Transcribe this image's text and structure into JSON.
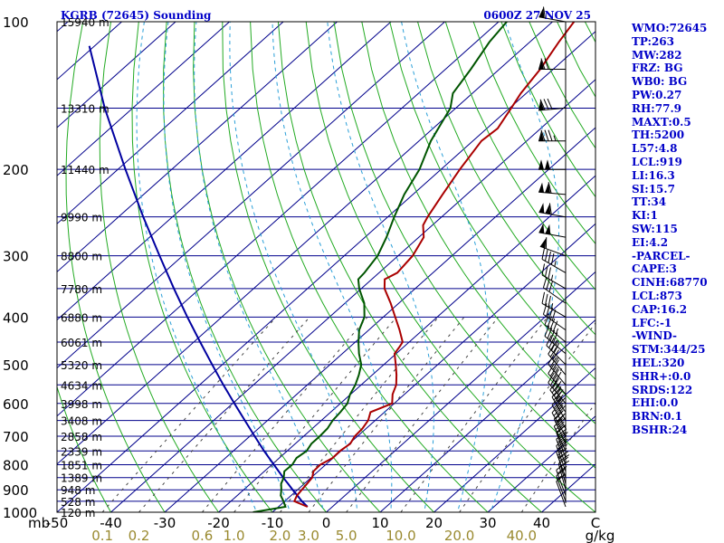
{
  "header": {
    "station": "KGRB (72645) Sounding",
    "time": "0600Z 27 NOV 25"
  },
  "indices": [
    "WMO:72645",
    "TP:263",
    "MW:282",
    "FRZ: BG",
    "WB0: BG",
    "PW:0.27",
    "RH:77.9",
    "MAXT:0.5",
    "TH:5200",
    "L57:4.8",
    "LCL:919",
    "LI:16.3",
    "SI:15.7",
    "TT:34",
    "KI:1",
    "SW:115",
    "EI:4.2",
    "-PARCEL-",
    "CAPE:3",
    "CINH:68770",
    "LCL:873",
    "CAP:16.2",
    "LFC:-1",
    "-WIND-",
    "STM:344/25",
    "HEL:320",
    "SHR+:0.0",
    "SRDS:122",
    "EHI:0.0",
    "BRN:0.1",
    "BSHR:24"
  ],
  "chart_data": {
    "type": "line",
    "subtype": "skew-t log-p sounding",
    "y_scale": "log",
    "pressure_range_mb": [
      1000,
      100
    ],
    "temp_range_c": [
      -50,
      50
    ],
    "pressure_unit_label": "mb",
    "pressure_labels": [
      {
        "p": 100,
        "text": "100"
      },
      {
        "p": 200,
        "text": "200"
      },
      {
        "p": 300,
        "text": "300"
      },
      {
        "p": 400,
        "text": "400"
      },
      {
        "p": 500,
        "text": "500"
      },
      {
        "p": 600,
        "text": "600"
      },
      {
        "p": 700,
        "text": "700"
      },
      {
        "p": 800,
        "text": "800"
      },
      {
        "p": 900,
        "text": "900"
      },
      {
        "p": 1000,
        "text": "1000"
      }
    ],
    "height_levels": [
      {
        "p": 100,
        "text": "15940 m"
      },
      {
        "p": 150,
        "text": "13310 m"
      },
      {
        "p": 200,
        "text": "11440 m"
      },
      {
        "p": 250,
        "text": "9990 m"
      },
      {
        "p": 300,
        "text": "8800 m"
      },
      {
        "p": 350,
        "text": "7780 m"
      },
      {
        "p": 400,
        "text": "6880 m"
      },
      {
        "p": 450,
        "text": "6061 m"
      },
      {
        "p": 500,
        "text": "5320 m"
      },
      {
        "p": 550,
        "text": "4634 m"
      },
      {
        "p": 600,
        "text": "3998 m"
      },
      {
        "p": 650,
        "text": "3408 m"
      },
      {
        "p": 700,
        "text": "2858 m"
      },
      {
        "p": 750,
        "text": "2339 m"
      },
      {
        "p": 800,
        "text": "1851 m"
      },
      {
        "p": 850,
        "text": "1389 m"
      },
      {
        "p": 900,
        "text": "948 m"
      },
      {
        "p": 950,
        "text": "528 m"
      },
      {
        "p": 1000,
        "text": "120 m"
      }
    ],
    "temperature_ticks": [
      "-50",
      "-40",
      "-30",
      "-20",
      "-10",
      "0",
      "10",
      "20",
      "30",
      "40",
      "C"
    ],
    "mixing_ratio_labels": [
      "0.1",
      "0.2",
      "0.6",
      "1.0",
      "2.0",
      "3.0",
      "5.0",
      "10.0",
      "20.0",
      "40.0"
    ],
    "mixing_ratio_unit": "g/kg",
    "temperature_profile": [
      {
        "p": 975,
        "t": -4.6
      },
      {
        "p": 950,
        "t": -8.2
      },
      {
        "p": 925,
        "t": -8.9
      },
      {
        "p": 900,
        "t": -9.2
      },
      {
        "p": 875,
        "t": -9.5
      },
      {
        "p": 850,
        "t": -9.8
      },
      {
        "p": 825,
        "t": -10.9
      },
      {
        "p": 800,
        "t": -11.0
      },
      {
        "p": 775,
        "t": -10.1
      },
      {
        "p": 750,
        "t": -10.2
      },
      {
        "p": 725,
        "t": -9.8
      },
      {
        "p": 700,
        "t": -10.5
      },
      {
        "p": 675,
        "t": -10.7
      },
      {
        "p": 650,
        "t": -11.3
      },
      {
        "p": 625,
        "t": -12.6
      },
      {
        "p": 600,
        "t": -10.4
      },
      {
        "p": 575,
        "t": -12.2
      },
      {
        "p": 550,
        "t": -13.5
      },
      {
        "p": 525,
        "t": -15.5
      },
      {
        "p": 500,
        "t": -17.8
      },
      {
        "p": 475,
        "t": -20.3
      },
      {
        "p": 460,
        "t": -20.8
      },
      {
        "p": 450,
        "t": -21.2
      },
      {
        "p": 425,
        "t": -24.3
      },
      {
        "p": 400,
        "t": -27.8
      },
      {
        "p": 375,
        "t": -31.5
      },
      {
        "p": 350,
        "t": -35.7
      },
      {
        "p": 335,
        "t": -37.6
      },
      {
        "p": 325,
        "t": -36.6
      },
      {
        "p": 300,
        "t": -37.3
      },
      {
        "p": 275,
        "t": -39.1
      },
      {
        "p": 260,
        "t": -41.7
      },
      {
        "p": 250,
        "t": -42.6
      },
      {
        "p": 225,
        "t": -44.5
      },
      {
        "p": 200,
        "t": -46.5
      },
      {
        "p": 175,
        "t": -48.4
      },
      {
        "p": 165,
        "t": -48.0
      },
      {
        "p": 150,
        "t": -49.7
      },
      {
        "p": 140,
        "t": -51.0
      },
      {
        "p": 125,
        "t": -52.4
      },
      {
        "p": 110,
        "t": -54.6
      },
      {
        "p": 100,
        "t": -56.0
      }
    ],
    "dewpoint_profile": [
      {
        "p": 1000,
        "t": -13.6
      },
      {
        "p": 975,
        "t": -8.7
      },
      {
        "p": 950,
        "t": -10.2
      },
      {
        "p": 925,
        "t": -11.9
      },
      {
        "p": 900,
        "t": -13.0
      },
      {
        "p": 875,
        "t": -14.3
      },
      {
        "p": 850,
        "t": -15.1
      },
      {
        "p": 825,
        "t": -16.3
      },
      {
        "p": 800,
        "t": -16.2
      },
      {
        "p": 775,
        "t": -16.8
      },
      {
        "p": 750,
        "t": -16.4
      },
      {
        "p": 725,
        "t": -17.0
      },
      {
        "p": 700,
        "t": -17.0
      },
      {
        "p": 675,
        "t": -17.2
      },
      {
        "p": 650,
        "t": -17.9
      },
      {
        "p": 625,
        "t": -18.2
      },
      {
        "p": 600,
        "t": -18.7
      },
      {
        "p": 575,
        "t": -20.1
      },
      {
        "p": 550,
        "t": -21.1
      },
      {
        "p": 525,
        "t": -22.5
      },
      {
        "p": 500,
        "t": -24.2
      },
      {
        "p": 475,
        "t": -26.9
      },
      {
        "p": 450,
        "t": -29.4
      },
      {
        "p": 425,
        "t": -31.8
      },
      {
        "p": 400,
        "t": -33.5
      },
      {
        "p": 375,
        "t": -36.4
      },
      {
        "p": 350,
        "t": -40.4
      },
      {
        "p": 335,
        "t": -42.5
      },
      {
        "p": 325,
        "t": -42.7
      },
      {
        "p": 300,
        "t": -43.8
      },
      {
        "p": 275,
        "t": -46.0
      },
      {
        "p": 250,
        "t": -48.8
      },
      {
        "p": 225,
        "t": -51.6
      },
      {
        "p": 200,
        "t": -54.0
      },
      {
        "p": 175,
        "t": -57.8
      },
      {
        "p": 150,
        "t": -61.0
      },
      {
        "p": 140,
        "t": -63.6
      },
      {
        "p": 125,
        "t": -65.3
      },
      {
        "p": 110,
        "t": -67.5
      },
      {
        "p": 100,
        "t": -68.5
      }
    ],
    "parcel_profile": [
      {
        "p": 975,
        "t": -4.6
      },
      {
        "p": 950,
        "t": -6.8
      },
      {
        "p": 925,
        "t": -8.8
      },
      {
        "p": 900,
        "t": -10.9
      },
      {
        "p": 875,
        "t": -13.0
      },
      {
        "p": 850,
        "t": -15.2
      },
      {
        "p": 800,
        "t": -19.6
      },
      {
        "p": 750,
        "t": -24.3
      },
      {
        "p": 700,
        "t": -29.1
      },
      {
        "p": 650,
        "t": -34.2
      },
      {
        "p": 600,
        "t": -39.7
      },
      {
        "p": 550,
        "t": -45.6
      },
      {
        "p": 500,
        "t": -51.9
      },
      {
        "p": 450,
        "t": -58.8
      },
      {
        "p": 400,
        "t": -66.4
      },
      {
        "p": 350,
        "t": -74.8
      },
      {
        "p": 300,
        "t": -84.3
      },
      {
        "p": 250,
        "t": -95.4
      },
      {
        "p": 200,
        "t": -108.6
      },
      {
        "p": 150,
        "t": -125.2
      },
      {
        "p": 112,
        "t": -141.0
      }
    ],
    "wind_profile": [
      {
        "p": 100,
        "dir": 280,
        "kt": 60
      },
      {
        "p": 125,
        "dir": 270,
        "kt": 70
      },
      {
        "p": 150,
        "dir": 265,
        "kt": 80
      },
      {
        "p": 175,
        "dir": 270,
        "kt": 85
      },
      {
        "p": 200,
        "dir": 270,
        "kt": 100
      },
      {
        "p": 225,
        "dir": 275,
        "kt": 110
      },
      {
        "p": 250,
        "dir": 280,
        "kt": 110
      },
      {
        "p": 275,
        "dir": 280,
        "kt": 100
      },
      {
        "p": 300,
        "dir": 290,
        "kt": 60
      },
      {
        "p": 325,
        "dir": 300,
        "kt": 45
      },
      {
        "p": 350,
        "dir": 300,
        "kt": 35
      },
      {
        "p": 375,
        "dir": 305,
        "kt": 30
      },
      {
        "p": 400,
        "dir": 300,
        "kt": 35
      },
      {
        "p": 425,
        "dir": 305,
        "kt": 40
      },
      {
        "p": 450,
        "dir": 310,
        "kt": 45
      },
      {
        "p": 475,
        "dir": 310,
        "kt": 45
      },
      {
        "p": 500,
        "dir": 315,
        "kt": 40
      },
      {
        "p": 525,
        "dir": 320,
        "kt": 35
      },
      {
        "p": 550,
        "dir": 320,
        "kt": 35
      },
      {
        "p": 575,
        "dir": 320,
        "kt": 40
      },
      {
        "p": 600,
        "dir": 320,
        "kt": 45
      },
      {
        "p": 625,
        "dir": 325,
        "kt": 45
      },
      {
        "p": 650,
        "dir": 330,
        "kt": 45
      },
      {
        "p": 675,
        "dir": 330,
        "kt": 40
      },
      {
        "p": 700,
        "dir": 330,
        "kt": 40
      },
      {
        "p": 725,
        "dir": 335,
        "kt": 35
      },
      {
        "p": 750,
        "dir": 335,
        "kt": 30
      },
      {
        "p": 775,
        "dir": 340,
        "kt": 30
      },
      {
        "p": 800,
        "dir": 340,
        "kt": 30
      },
      {
        "p": 825,
        "dir": 340,
        "kt": 25
      },
      {
        "p": 850,
        "dir": 340,
        "kt": 25
      },
      {
        "p": 875,
        "dir": 345,
        "kt": 20
      },
      {
        "p": 900,
        "dir": 345,
        "kt": 20
      },
      {
        "p": 925,
        "dir": 340,
        "kt": 20
      },
      {
        "p": 950,
        "dir": 340,
        "kt": 15
      },
      {
        "p": 975,
        "dir": 340,
        "kt": 10
      }
    ],
    "colors": {
      "isobar": "#00008b",
      "isotherm": "#00008b",
      "dry_adiabat": "#22aa22",
      "moist_adiabat": "#2a9fd8",
      "mixing_ratio": "#444444",
      "temperature": "#aa0000",
      "dewpoint": "#005500",
      "parcel": "#0000a0",
      "title_text": "#0000c8",
      "mixing_label": "#9a8a30"
    }
  }
}
